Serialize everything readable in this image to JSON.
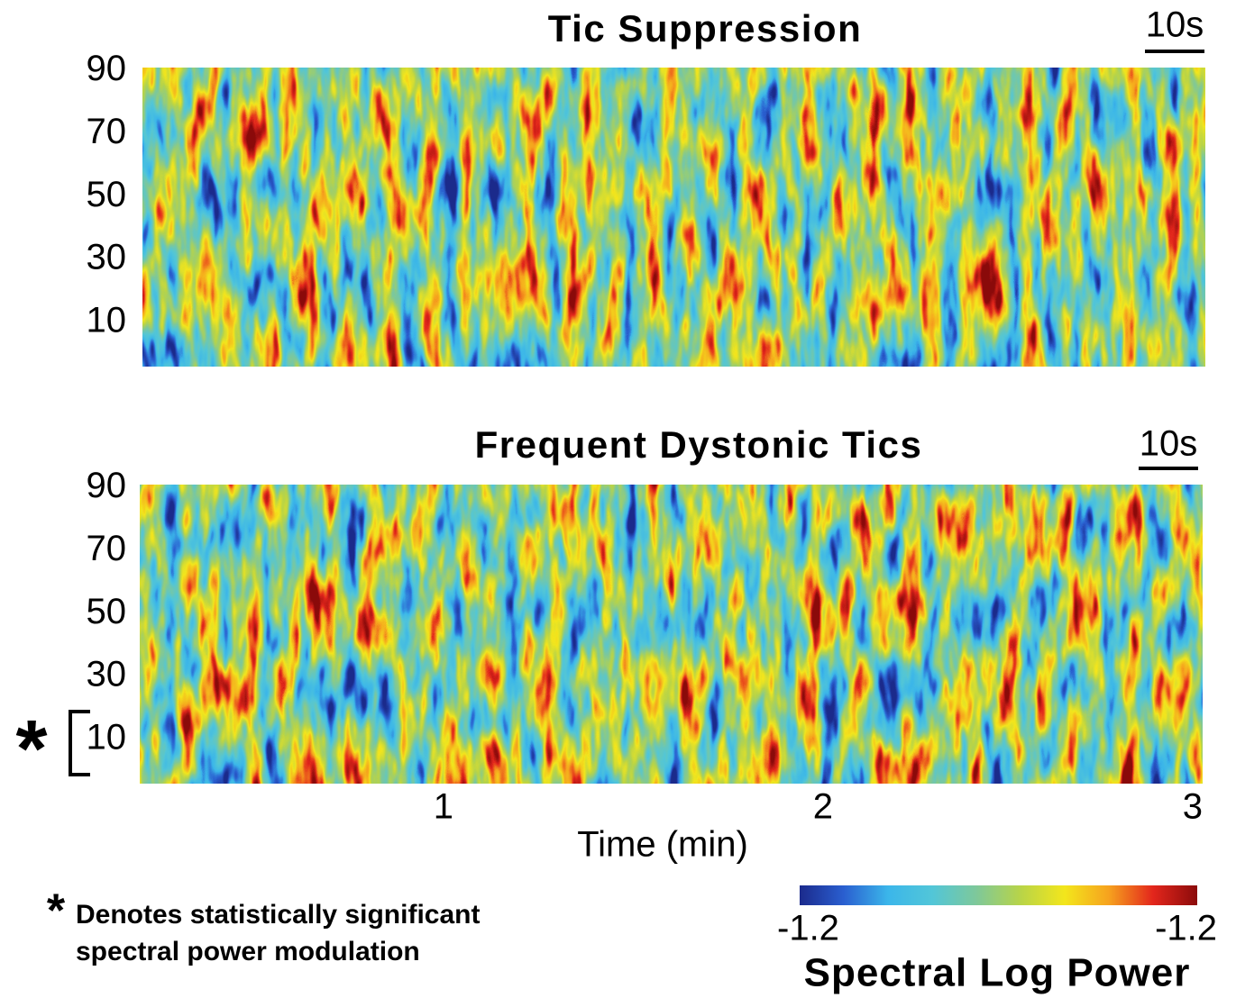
{
  "chart_data": [
    {
      "type": "heatmap",
      "title": "Tic Suppression",
      "scale_bar_label": "10s",
      "xlim": [
        0.2,
        3
      ],
      "ylim": [
        -4,
        91
      ],
      "yticks": [
        10,
        30,
        50,
        70,
        90
      ]
    },
    {
      "type": "heatmap",
      "title": "Frequent Dystonic Tics",
      "scale_bar_label": "10s",
      "xlim": [
        0.2,
        3
      ],
      "ylim": [
        -4,
        91
      ],
      "yticks": [
        10,
        30,
        50,
        70,
        90
      ],
      "xticks": [
        1,
        2,
        3
      ],
      "xlabel": "Time (min)",
      "significance_marker": "*",
      "colormap": [
        "#1b2a8c",
        "#2a5fd0",
        "#3bb6ea",
        "#52c6d8",
        "#7ec89a",
        "#b8d448",
        "#f3e61c",
        "#f6a21e",
        "#e3261c",
        "#8b0b0b"
      ],
      "colorbar_ticks": [
        -1.2,
        -1.2
      ],
      "colorbar_label": "Spectral Log Power",
      "note_marker": "*",
      "note": [
        "Denotes statistically significant",
        "spectral power modulation"
      ]
    }
  ]
}
